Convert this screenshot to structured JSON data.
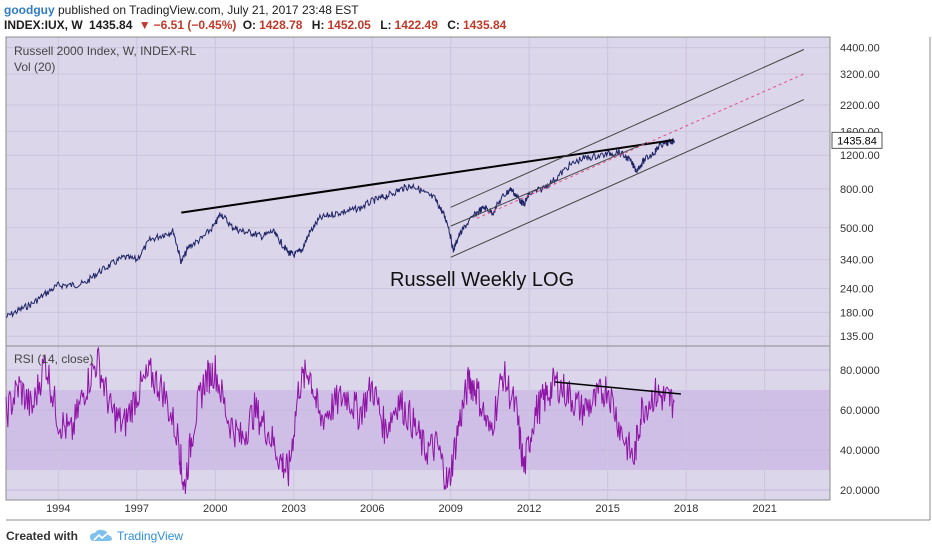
{
  "header": {
    "user": "goodguy",
    "published": "published on TradingView.com, July 21, 2017 23:48 EST",
    "symbol": "INDEX:IUX, W",
    "last": "1435.84",
    "change_arrow": "▼",
    "change": "−6.51 (−0.45%)",
    "o_label": "O:",
    "o": "1428.78",
    "h_label": "H:",
    "h": "1452.05",
    "l_label": "L:",
    "l": "1422.49",
    "c_label": "C:",
    "c": "1435.84"
  },
  "footer": {
    "created": "Created with",
    "brand": "TradingView"
  },
  "chart_data": [
    {
      "type": "line",
      "title": "Russell 2000 Index, W, INDEX-RL",
      "subtitle": "Vol (20)",
      "annotation": "Russell Weekly LOG",
      "scale": "log",
      "ylim": [
        120,
        5000
      ],
      "y_ticks": [
        "4400.00",
        "3200.00",
        "2200.00",
        "1600.00",
        "1200.00",
        "800.00",
        "500.00",
        "340.00",
        "240.00",
        "180.00",
        "135.00"
      ],
      "y_tick_values": [
        4400,
        3200,
        2200,
        1600,
        1200,
        800,
        500,
        340,
        240,
        180,
        135
      ],
      "last_price_label": "1435.84",
      "last_price": 1435.84,
      "x_ticks": [
        "1994",
        "1997",
        "2000",
        "2003",
        "2006",
        "2009",
        "2012",
        "2015",
        "2018",
        "2021"
      ],
      "x_tick_values": [
        1994,
        1997,
        2000,
        2003,
        2006,
        2009,
        2012,
        2015,
        2018,
        2021
      ],
      "xlim": [
        1992,
        2023.5
      ],
      "series": [
        {
          "x": [
            1992.0,
            1992.5,
            1993.0,
            1993.5,
            1994.0,
            1994.5,
            1995.0,
            1995.5,
            1996.0,
            1996.5,
            1997.0,
            1997.5,
            1998.0,
            1998.4,
            1998.7,
            1999.0,
            1999.5,
            2000.0,
            2000.2,
            2000.6,
            2001.0,
            2001.4,
            2001.8,
            2002.2,
            2002.5,
            2002.8,
            2003.0,
            2003.3,
            2003.6,
            2004.0,
            2004.5,
            2005.0,
            2005.5,
            2006.0,
            2006.4,
            2006.8,
            2007.2,
            2007.6,
            2008.0,
            2008.4,
            2008.7,
            2008.9,
            2009.1,
            2009.3,
            2009.6,
            2010.0,
            2010.3,
            2010.6,
            2011.0,
            2011.3,
            2011.6,
            2011.8,
            2012.0,
            2012.5,
            2013.0,
            2013.5,
            2014.0,
            2014.5,
            2015.0,
            2015.4,
            2015.8,
            2016.1,
            2016.4,
            2016.8,
            2017.0,
            2017.3,
            2017.55
          ],
          "values": [
            170,
            185,
            200,
            225,
            250,
            250,
            255,
            290,
            320,
            350,
            340,
            430,
            460,
            480,
            330,
            400,
            440,
            520,
            600,
            510,
            480,
            470,
            450,
            480,
            420,
            370,
            360,
            380,
            470,
            560,
            590,
            610,
            630,
            690,
            720,
            760,
            810,
            830,
            760,
            710,
            600,
            520,
            380,
            450,
            520,
            600,
            640,
            600,
            730,
            800,
            710,
            660,
            750,
            800,
            900,
            1050,
            1150,
            1180,
            1220,
            1250,
            1150,
            1000,
            1130,
            1250,
            1360,
            1390,
            1436
          ]
        }
      ],
      "trendlines": [
        {
          "name": "resistance",
          "x": [
            1998.7,
            2017.5
          ],
          "values": [
            600,
            1440
          ]
        },
        {
          "name": "upper channel",
          "x": [
            2009.0,
            2022.5
          ],
          "values": [
            640,
            4300
          ]
        },
        {
          "name": "lower channel",
          "x": [
            2009.0,
            2022.5
          ],
          "values": [
            350,
            2350
          ]
        },
        {
          "name": "mid channel",
          "x": [
            2010.0,
            2022.5
          ],
          "values": [
            560,
            3200
          ]
        },
        {
          "name": "small channel",
          "x": [
            2009.0,
            2016.5
          ],
          "values": [
            510,
            1400
          ]
        }
      ]
    },
    {
      "type": "line",
      "title": "RSI (14, close)",
      "ylim": [
        15,
        92
      ],
      "y_ticks": [
        "80.0000",
        "60.0000",
        "40.0000",
        "20.0000"
      ],
      "y_tick_values": [
        80,
        60,
        40,
        20
      ],
      "band": [
        30,
        70
      ],
      "series": [
        {
          "x": [
            1992.0,
            1992.5,
            1993.0,
            1993.5,
            1994.0,
            1994.5,
            1995.0,
            1995.5,
            1996.0,
            1996.5,
            1997.0,
            1997.5,
            1998.0,
            1998.6,
            1998.8,
            1999.2,
            1999.6,
            2000.0,
            2000.5,
            2001.0,
            2001.5,
            2002.0,
            2002.5,
            2002.8,
            2003.2,
            2003.6,
            2004.0,
            2004.5,
            2005.0,
            2005.5,
            2006.0,
            2006.5,
            2007.0,
            2007.5,
            2008.0,
            2008.5,
            2008.9,
            2009.3,
            2009.7,
            2010.0,
            2010.5,
            2011.0,
            2011.5,
            2011.8,
            2012.2,
            2012.6,
            2013.0,
            2013.5,
            2014.0,
            2014.5,
            2015.0,
            2015.5,
            2016.0,
            2016.3,
            2016.8,
            2017.2,
            2017.55
          ],
          "values": [
            58,
            72,
            60,
            85,
            55,
            48,
            70,
            85,
            60,
            52,
            68,
            78,
            70,
            45,
            20,
            55,
            75,
            80,
            55,
            45,
            60,
            50,
            35,
            28,
            72,
            80,
            55,
            62,
            68,
            58,
            72,
            50,
            65,
            55,
            40,
            42,
            22,
            52,
            75,
            70,
            48,
            78,
            60,
            30,
            58,
            66,
            74,
            68,
            60,
            64,
            72,
            50,
            35,
            60,
            68,
            66,
            64
          ]
        }
      ],
      "trendlines": [
        {
          "name": "rsi divergence",
          "x": [
            2013.0,
            2017.8
          ],
          "values": [
            74,
            68
          ]
        }
      ]
    }
  ]
}
